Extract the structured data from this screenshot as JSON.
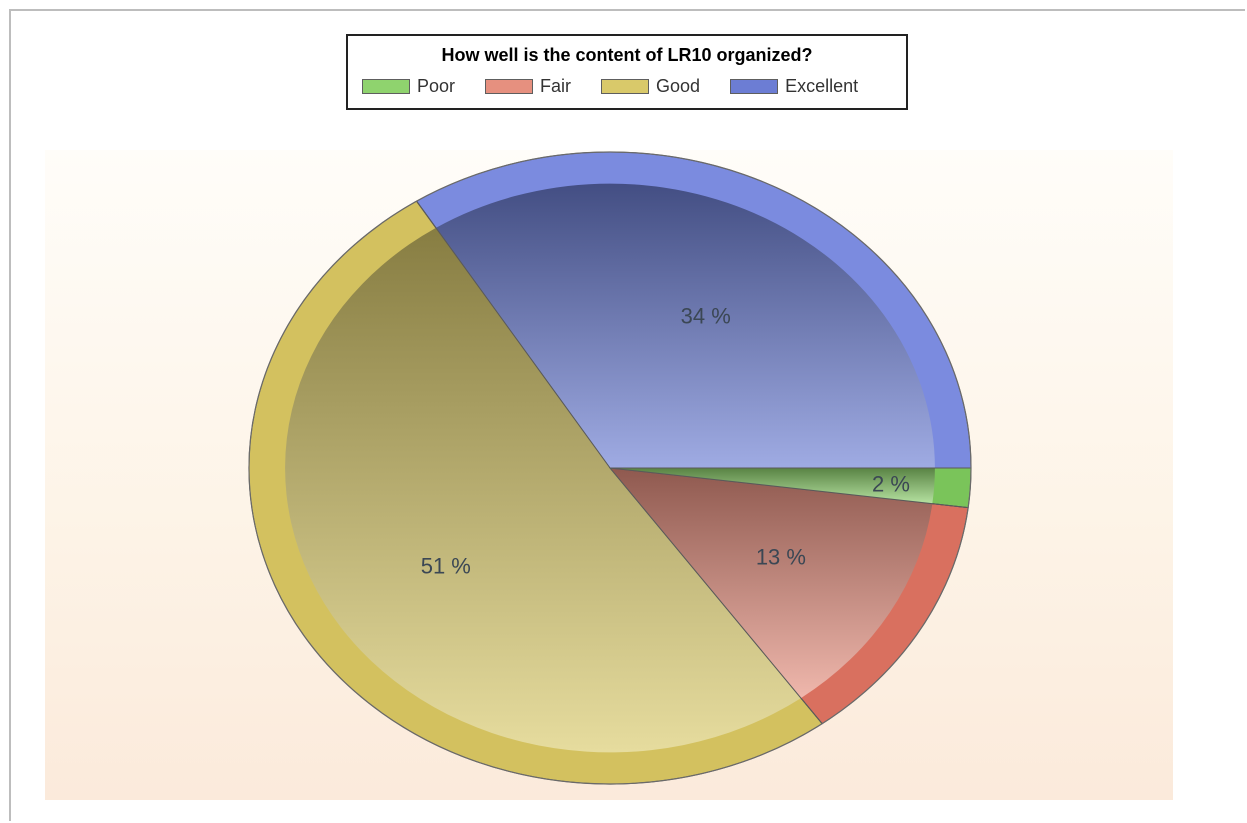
{
  "chart_data": {
    "type": "pie",
    "title": "How well is the content of LR10 organized?",
    "legend_position": "top",
    "slices": [
      {
        "label": "Poor",
        "value": 2,
        "display": "2 %",
        "color": "#8fd36e",
        "edge": "#7ac45a"
      },
      {
        "label": "Fair",
        "value": 13,
        "display": "13 %",
        "color": "#e6907f",
        "edge": "#d9705f"
      },
      {
        "label": "Good",
        "value": 51,
        "display": "51 %",
        "color": "#d9c96a",
        "edge": "#d3c15f"
      },
      {
        "label": "Excellent",
        "value": 34,
        "display": "34 %",
        "color": "#6c7dd4",
        "edge": "#7b8bdf"
      }
    ]
  }
}
